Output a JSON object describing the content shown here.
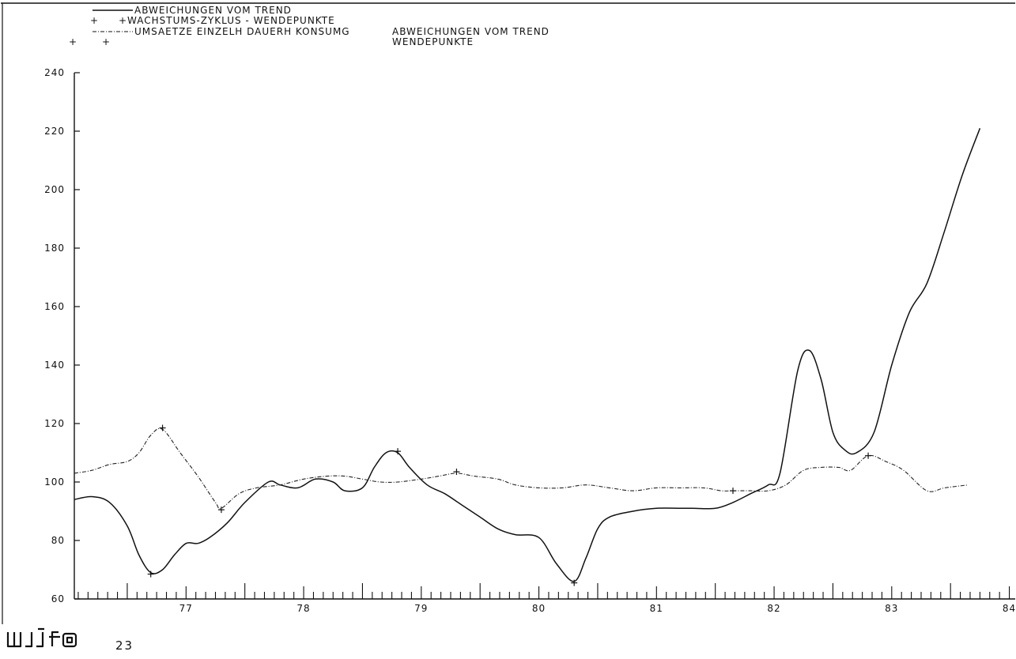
{
  "chart_data": {
    "type": "line",
    "title": "",
    "xlabel": "",
    "ylabel": "",
    "xlim": [
      76.55,
      84.55
    ],
    "ylim": [
      60,
      240
    ],
    "yticks": [
      60,
      80,
      100,
      120,
      140,
      160,
      180,
      200,
      220,
      240
    ],
    "xticks": [
      77,
      78,
      79,
      80,
      81,
      82,
      83,
      84
    ],
    "xtick_labels": [
      "77",
      "78",
      "79",
      "80",
      "81",
      "82",
      "83",
      "84"
    ],
    "legend": {
      "placement": "top-left",
      "entries": [
        {
          "style": "solid",
          "text": "ABWEICHUNGEN VOM TREND"
        },
        {
          "style": "cross",
          "text": "+WACHSTUMS-ZYKLUS - WENDEPUNKTE"
        },
        {
          "style": "dash-dot",
          "text": "UMSAETZE EINZELH DAUERH KONSUMG"
        }
      ],
      "extra_line1": "ABWEICHUNGEN VOM TREND",
      "extra_line2": "WENDEPUNKTE"
    },
    "series": [
      {
        "style": "solid",
        "x": [
          76.55,
          76.7,
          76.85,
          77.0,
          77.1,
          77.2,
          77.3,
          77.4,
          77.5,
          77.6,
          77.7,
          77.85,
          78.0,
          78.2,
          78.3,
          78.45,
          78.6,
          78.75,
          78.85,
          79.0,
          79.1,
          79.2,
          79.3,
          79.4,
          79.55,
          79.7,
          79.85,
          80.0,
          80.15,
          80.3,
          80.5,
          80.65,
          80.8,
          80.9,
          81.0,
          81.1,
          81.3,
          81.5,
          81.7,
          81.8,
          82.0,
          82.15,
          82.3,
          82.45,
          82.55,
          82.7,
          82.8,
          82.9,
          83.0,
          83.1,
          83.2,
          83.35,
          83.5,
          83.65,
          83.8,
          83.95,
          84.1,
          84.25
        ],
        "y": [
          94,
          95,
          93,
          85,
          75,
          69,
          70,
          75,
          79,
          79,
          81,
          86,
          93,
          100,
          99,
          98,
          101,
          100,
          97,
          98,
          105,
          110,
          110,
          105,
          99,
          96,
          92,
          88,
          84,
          82,
          81,
          72,
          66,
          74,
          84,
          88,
          90,
          91,
          91,
          91,
          91,
          93,
          96,
          99,
          103,
          138,
          145,
          135,
          117,
          111,
          110,
          117,
          140,
          158,
          168,
          186,
          205,
          221
        ]
      },
      {
        "style": "dash-dot",
        "x": [
          76.55,
          76.7,
          76.85,
          77.0,
          77.1,
          77.2,
          77.3,
          77.45,
          77.6,
          77.75,
          77.8,
          77.95,
          78.1,
          78.3,
          78.5,
          78.7,
          78.85,
          79.0,
          79.15,
          79.3,
          79.5,
          79.65,
          79.8,
          79.95,
          80.15,
          80.3,
          80.5,
          80.7,
          80.9,
          81.1,
          81.3,
          81.5,
          81.7,
          81.9,
          82.05,
          82.15,
          82.3,
          82.45,
          82.6,
          82.75,
          82.9,
          83.05,
          83.15,
          83.3,
          83.45,
          83.6,
          83.8,
          83.95,
          84.15
        ],
        "y": [
          103,
          104,
          106,
          107,
          110,
          116,
          118,
          110,
          102,
          93,
          91,
          96,
          98,
          99,
          101,
          102,
          102,
          101,
          100,
          100,
          101,
          102,
          103,
          102,
          101,
          99,
          98,
          98,
          99,
          98,
          97,
          98,
          98,
          98,
          97,
          97,
          97,
          97,
          99,
          104,
          105,
          105,
          104,
          109,
          107,
          104,
          97,
          98,
          99
        ]
      },
      {
        "style": "cross",
        "x": [
          77.2,
          77.3,
          77.8,
          79.3,
          79.8,
          80.8,
          82.15,
          83.3
        ],
        "y": [
          68.5,
          118.5,
          90.5,
          110.5,
          103.5,
          65.5,
          97,
          109
        ]
      }
    ]
  },
  "footer": {
    "logo_text": "wifo",
    "page_number": "23"
  }
}
